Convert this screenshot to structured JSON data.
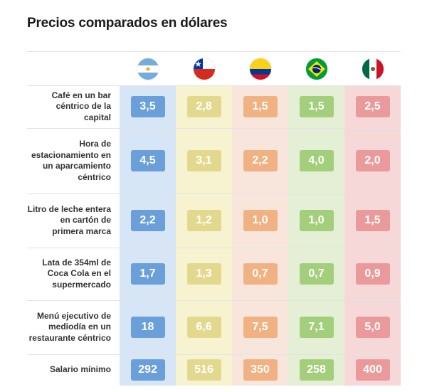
{
  "title": "Precios comparados en dólares",
  "chart_data": {
    "type": "table",
    "title": "Precios comparados en dólares",
    "columns": [
      {
        "country": "Argentina",
        "icon": "argentina-flag-icon",
        "bg": "#d6e6f7",
        "box": "#6a9fd9"
      },
      {
        "country": "Chile",
        "icon": "chile-flag-icon",
        "bg": "#f7f2cf",
        "box": "#e3d98e"
      },
      {
        "country": "Colombia",
        "icon": "colombia-flag-icon",
        "bg": "#f8e6dc",
        "box": "#f0b282"
      },
      {
        "country": "Brasil",
        "icon": "brazil-flag-icon",
        "bg": "#e4efd6",
        "box": "#a3cf7c"
      },
      {
        "country": "México",
        "icon": "mexico-flag-icon",
        "bg": "#f7d8d8",
        "box": "#ea9a9a"
      }
    ],
    "rows": [
      {
        "label": "Café en un bar céntrico de la capital",
        "values": [
          "3,5",
          "2,8",
          "1,5",
          "1,5",
          "2,5"
        ]
      },
      {
        "label": "Hora de estacionamiento en un aparcamiento céntrico",
        "values": [
          "4,5",
          "3,1",
          "2,2",
          "4,0",
          "2,0"
        ]
      },
      {
        "label": "Litro de leche entera en cartón de primera marca",
        "values": [
          "2,2",
          "1,2",
          "1,0",
          "1,0",
          "1,5"
        ]
      },
      {
        "label": "Lata de 354ml de Coca Cola en el supermercado",
        "values": [
          "1,7",
          "1,3",
          "0,7",
          "0,7",
          "0,9"
        ]
      },
      {
        "label": "Menú ejecutivo de mediodía en un restaurante céntrico",
        "values": [
          "18",
          "6,6",
          "7,5",
          "7,1",
          "5,0"
        ]
      },
      {
        "label": "Salario mínimo",
        "values": [
          "292",
          "516",
          "350",
          "258",
          "400"
        ]
      }
    ]
  }
}
